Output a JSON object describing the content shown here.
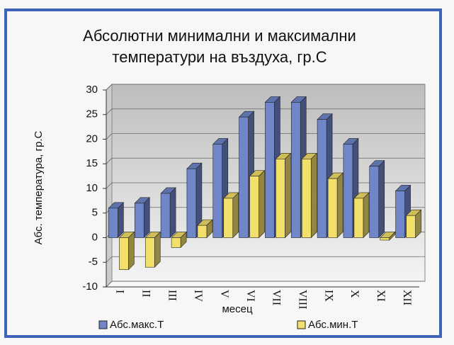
{
  "chart_data": {
    "type": "bar3d",
    "title": "Абсолютни минимални и максимални температури на въздуха, гр.С",
    "x_label": "месец",
    "y_label": "Абс. температура, гр.С",
    "categories": [
      "I",
      "II",
      "III",
      "IV",
      "V",
      "VI",
      "VII",
      "VIII",
      "IX",
      "X",
      "XI",
      "XII"
    ],
    "series": [
      {
        "name": "Абс.макс.Т",
        "color": "#6f86c9",
        "values": [
          6,
          7,
          9,
          14,
          19,
          24.5,
          27.5,
          27.5,
          24,
          19,
          14.5,
          9.5
        ]
      },
      {
        "name": "Абс.мин.Т",
        "color": "#f3e06a",
        "values": [
          -6.5,
          -6,
          -2,
          2.5,
          8,
          12.5,
          16,
          16,
          12,
          8,
          -0.5,
          4.5
        ]
      }
    ],
    "ylim": [
      -10,
      30
    ],
    "yticks": [
      -10,
      -5,
      0,
      5,
      10,
      15,
      20,
      25,
      30
    ],
    "grid": true,
    "legend": "bottom"
  }
}
